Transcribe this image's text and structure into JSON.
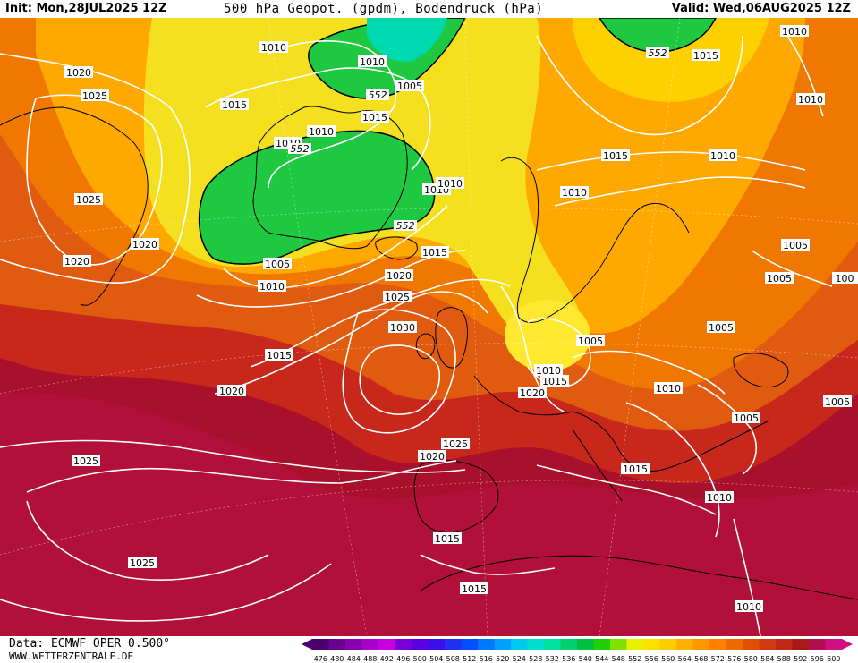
{
  "header": {
    "init": "Init: Mon,28JUL2025 12Z",
    "title": "500 hPa Geopot. (gpdm), Bodendruck (hPa)",
    "valid": "Valid: Wed,06AUG2025 12Z"
  },
  "footer": {
    "source": "Data: ECMWF OPER 0.500°",
    "site": "WWW.WETTERZENTRALE.DE"
  },
  "legend": {
    "values": [
      "476",
      "480",
      "484",
      "488",
      "492",
      "496",
      "500",
      "504",
      "508",
      "512",
      "516",
      "520",
      "524",
      "528",
      "532",
      "536",
      "540",
      "544",
      "548",
      "552",
      "556",
      "560",
      "564",
      "568",
      "572",
      "576",
      "580",
      "584",
      "588",
      "592",
      "596",
      "600"
    ],
    "colors": [
      "#4a0070",
      "#6a0090",
      "#8a00b0",
      "#a800c8",
      "#c800e0",
      "#7a00d8",
      "#5a00e0",
      "#3a10e8",
      "#2030f0",
      "#0050ff",
      "#0078ff",
      "#00a0ff",
      "#00c8f0",
      "#00e0d0",
      "#00e0a0",
      "#00d070",
      "#00c040",
      "#20d000",
      "#80e000",
      "#e8f000",
      "#ffe000",
      "#ffcc00",
      "#ffb000",
      "#ff9800",
      "#ff8000",
      "#f06a00",
      "#e05000",
      "#d03a10",
      "#c02818",
      "#a81a1a",
      "#b01050",
      "#d01080"
    ]
  },
  "map": {
    "colors": {
      "green": "#1ec840",
      "cyan": "#00d8b0",
      "yellow": "#f5e020",
      "lightyellow": "#ffe830",
      "orange": "#ffa800",
      "darkorange": "#f07800",
      "redorange": "#e05a10",
      "red": "#c8281c",
      "darkred": "#a8102c",
      "crimson": "#b0103a"
    },
    "isobar_labels": [
      {
        "text": "1010"
      },
      {
        "text": "1010"
      },
      {
        "text": "1005"
      },
      {
        "text": "1015"
      },
      {
        "text": "1010"
      },
      {
        "text": "1010"
      },
      {
        "text": "1020"
      },
      {
        "text": "1025"
      },
      {
        "text": "1015"
      },
      {
        "text": "1010"
      },
      {
        "text": "1010"
      },
      {
        "text": "1015"
      },
      {
        "text": "1025"
      },
      {
        "text": "1020"
      },
      {
        "text": "1020"
      },
      {
        "text": "1005"
      },
      {
        "text": "1010"
      },
      {
        "text": "1015"
      },
      {
        "text": "1020"
      },
      {
        "text": "1025"
      },
      {
        "text": "1030"
      },
      {
        "text": "1015"
      },
      {
        "text": "1020"
      },
      {
        "text": "1010"
      },
      {
        "text": "1005"
      },
      {
        "text": "1010"
      },
      {
        "text": "1015"
      },
      {
        "text": "1010"
      },
      {
        "text": "1005"
      },
      {
        "text": "1005"
      },
      {
        "text": "1005"
      },
      {
        "text": "1005"
      },
      {
        "text": "1010"
      },
      {
        "text": "1005"
      },
      {
        "text": "1010"
      },
      {
        "text": "1015"
      },
      {
        "text": "1020"
      },
      {
        "text": "1025"
      },
      {
        "text": "1025"
      },
      {
        "text": "1020"
      },
      {
        "text": "1015"
      },
      {
        "text": "1010"
      },
      {
        "text": "1015"
      },
      {
        "text": "1025"
      },
      {
        "text": "1015"
      },
      {
        "text": "1010"
      },
      {
        "text": "1010"
      },
      {
        "text": "1005"
      },
      {
        "text": "100"
      }
    ],
    "height_labels": [
      {
        "text": "552"
      },
      {
        "text": "552"
      },
      {
        "text": "552"
      },
      {
        "text": "552"
      }
    ]
  }
}
